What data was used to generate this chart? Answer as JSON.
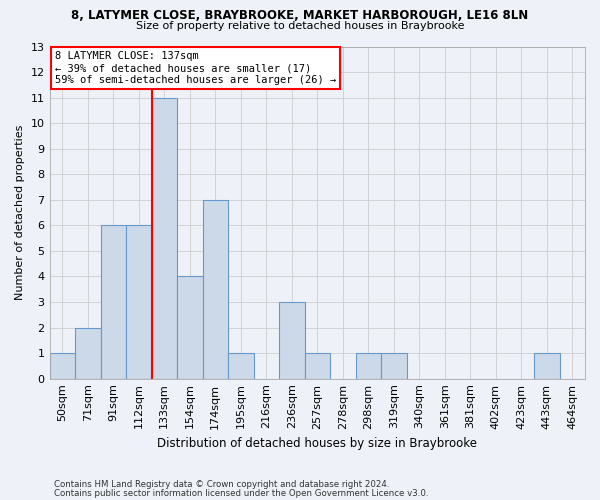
{
  "title1": "8, LATYMER CLOSE, BRAYBROOKE, MARKET HARBOROUGH, LE16 8LN",
  "title2": "Size of property relative to detached houses in Braybrooke",
  "xlabel": "Distribution of detached houses by size in Braybrooke",
  "ylabel": "Number of detached properties",
  "footnote1": "Contains HM Land Registry data © Crown copyright and database right 2024.",
  "footnote2": "Contains public sector information licensed under the Open Government Licence v3.0.",
  "bin_labels": [
    "50sqm",
    "71sqm",
    "91sqm",
    "112sqm",
    "133sqm",
    "154sqm",
    "174sqm",
    "195sqm",
    "216sqm",
    "236sqm",
    "257sqm",
    "278sqm",
    "298sqm",
    "319sqm",
    "340sqm",
    "361sqm",
    "381sqm",
    "402sqm",
    "423sqm",
    "443sqm",
    "464sqm"
  ],
  "bar_values": [
    1,
    2,
    6,
    6,
    11,
    4,
    7,
    1,
    0,
    3,
    1,
    0,
    1,
    1,
    0,
    0,
    0,
    0,
    0,
    1,
    0
  ],
  "bar_color": "#ccd9e8",
  "bar_edge_color": "#6699cc",
  "annotation_line1": "8 LATYMER CLOSE: 137sqm",
  "annotation_line2": "← 39% of detached houses are smaller (17)",
  "annotation_line3": "59% of semi-detached houses are larger (26) →",
  "annotation_box_color": "white",
  "annotation_box_edgecolor": "red",
  "vline_color": "red",
  "vline_x": 4,
  "ylim": [
    0,
    13
  ],
  "yticks": [
    0,
    1,
    2,
    3,
    4,
    5,
    6,
    7,
    8,
    9,
    10,
    11,
    12,
    13
  ],
  "grid_color": "#cccccc",
  "bg_color": "#eef2f8"
}
